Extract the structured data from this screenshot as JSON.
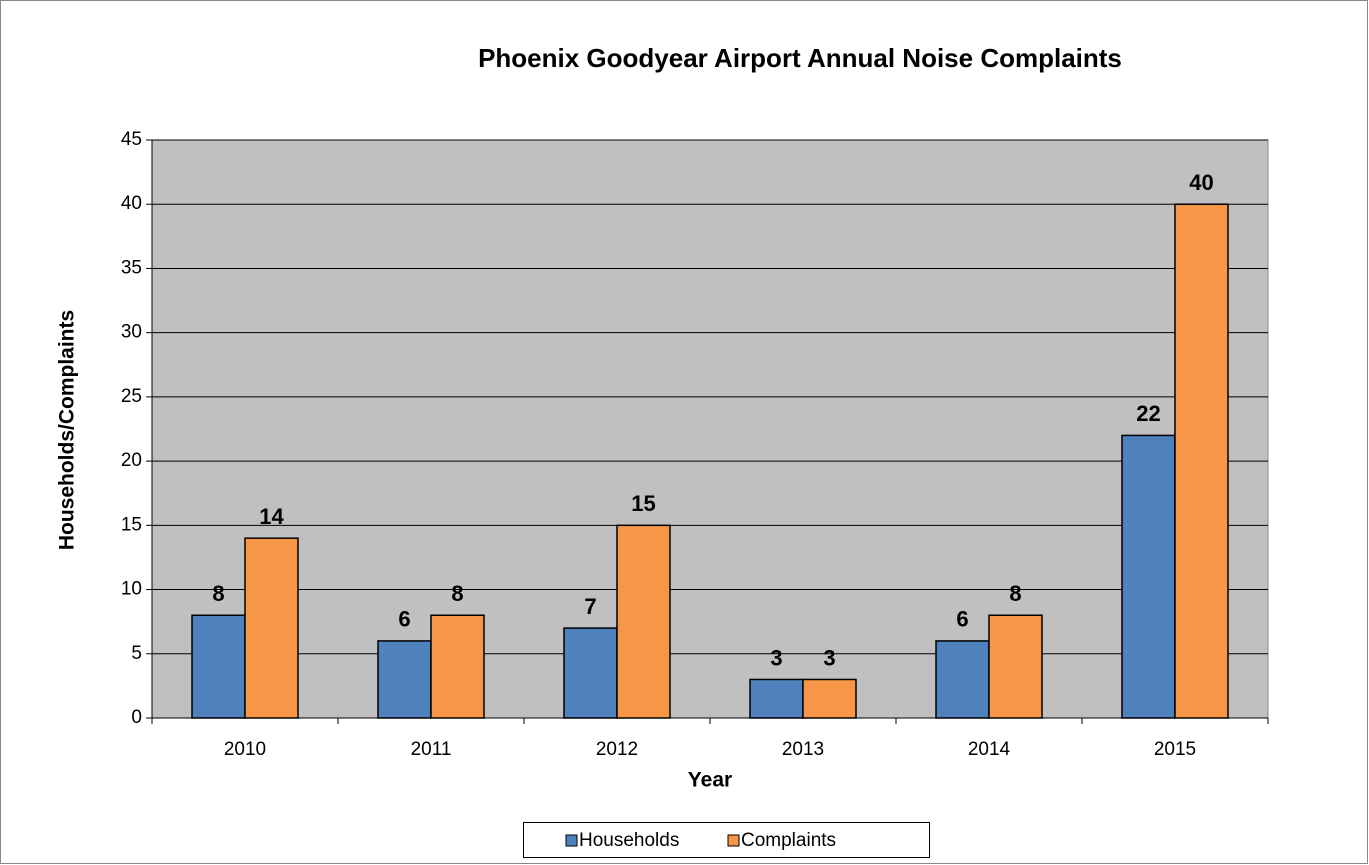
{
  "chart_data": {
    "type": "bar",
    "title": "Phoenix Goodyear Airport Annual Noise Complaints",
    "x_label": "Year",
    "y_label": "Households/Complaints",
    "categories": [
      "2010",
      "2011",
      "2012",
      "2013",
      "2014",
      "2015"
    ],
    "series": [
      {
        "name": "Households",
        "color": "#4f81bd",
        "values": [
          8,
          6,
          7,
          3,
          6,
          22
        ]
      },
      {
        "name": "Complaints",
        "color": "#f79646",
        "values": [
          14,
          8,
          15,
          3,
          8,
          40
        ]
      }
    ],
    "ylim": [
      0,
      45
    ],
    "yticks": [
      0,
      5,
      10,
      15,
      20,
      25,
      30,
      35,
      40,
      45
    ],
    "grid": true,
    "legend": "bottom",
    "plot_background": "#c0c0c0"
  }
}
